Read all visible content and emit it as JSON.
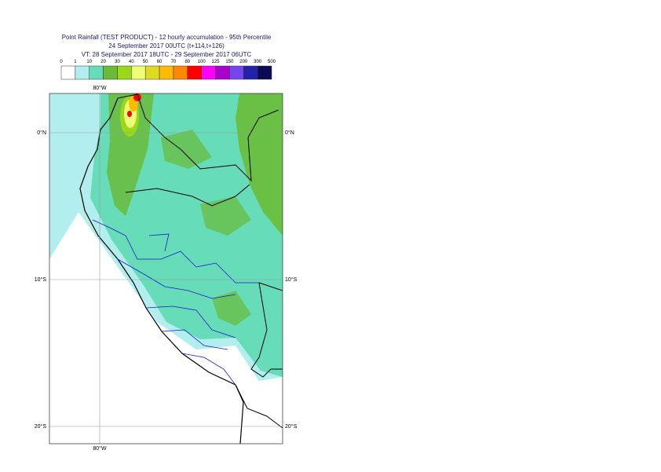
{
  "header": {
    "title_lines": [
      "Point Rainfall (TEST PRODUCT) - 12 hourly accumulation - 95th Percentile",
      "24 September 2017 00UTC (t+114,t+126)",
      "VT: 28 September 2017 18UTC - 29 September 2017 06UTC"
    ]
  },
  "legend": {
    "labels": [
      "0",
      "1",
      "10",
      "20",
      "30",
      "40",
      "50",
      "60",
      "70",
      "80",
      "100",
      "125",
      "150",
      "200",
      "300",
      "500"
    ],
    "colors": [
      "#ffffff",
      "#b2eeee",
      "#66dcb8",
      "#6abb38",
      "#9ad81a",
      "#eeff77",
      "#dcdc22",
      "#ffbb00",
      "#ff8800",
      "#ff0000",
      "#ff00ff",
      "#aa00cc",
      "#7744ee",
      "#2222aa",
      "#0a0a55"
    ]
  },
  "map": {
    "lon_labels": [
      "80°W"
    ],
    "lat_labels": [
      "0°N",
      "10°S",
      "20°S"
    ]
  }
}
